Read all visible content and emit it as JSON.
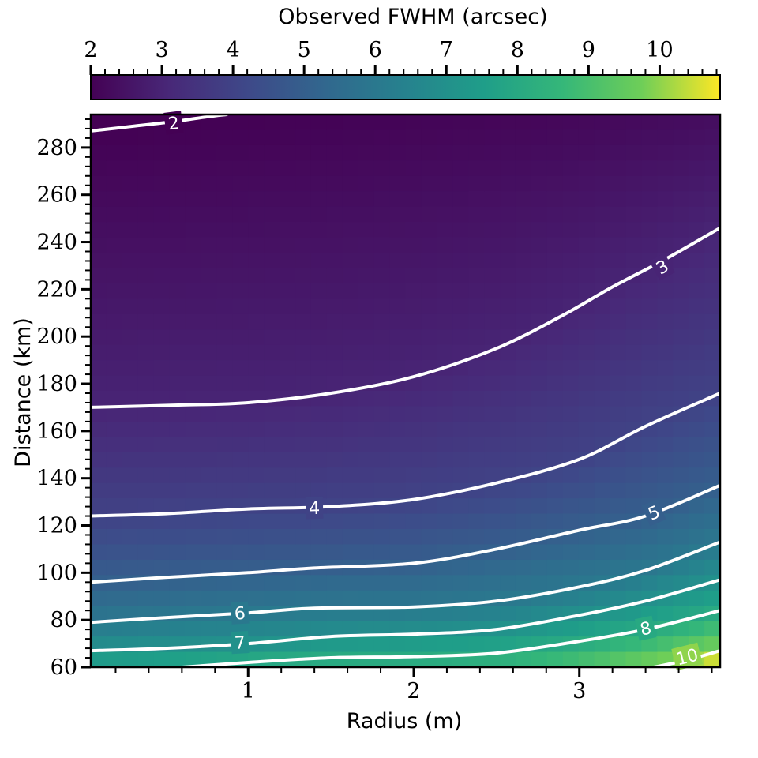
{
  "chart_data": {
    "type": "heatmap",
    "colormap": "viridis",
    "colorbar": {
      "label": "Observed FWHM (arcsec)",
      "range": [
        2,
        10.85
      ],
      "ticks": [
        2,
        3,
        4,
        5,
        6,
        7,
        8,
        9,
        10
      ],
      "tick_labels": [
        "2",
        "3",
        "4",
        "5",
        "6",
        "7",
        "8",
        "9",
        "10"
      ],
      "position": "top"
    },
    "x": {
      "label": "Radius (m)",
      "range": [
        0.05,
        3.85
      ],
      "ticks": [
        1,
        2,
        3
      ],
      "tick_labels": [
        "1",
        "2",
        "3"
      ]
    },
    "y": {
      "label": "Distance (km)",
      "range": [
        60,
        294
      ],
      "ticks": [
        60,
        80,
        100,
        120,
        140,
        160,
        180,
        200,
        220,
        240,
        260,
        280
      ],
      "tick_labels": [
        "60",
        "80",
        "100",
        "120",
        "140",
        "160",
        "180",
        "200",
        "220",
        "240",
        "260",
        "280"
      ]
    },
    "grid": false,
    "contours": [
      {
        "level": 2,
        "label": "2",
        "points": [
          [
            0.05,
            287
          ],
          [
            0.3,
            289
          ],
          [
            0.55,
            291
          ],
          [
            0.75,
            293
          ],
          [
            0.87,
            294
          ]
        ],
        "label_at": [
          0.55,
          290.5
        ]
      },
      {
        "level": 3,
        "label": "3",
        "points": [
          [
            0.05,
            170
          ],
          [
            0.6,
            171
          ],
          [
            1.0,
            172
          ],
          [
            1.5,
            176
          ],
          [
            2.0,
            183
          ],
          [
            2.5,
            195
          ],
          [
            2.9,
            209
          ],
          [
            3.2,
            221
          ],
          [
            3.5,
            232
          ],
          [
            3.85,
            246
          ]
        ],
        "label_at": [
          3.5,
          229.5
        ]
      },
      {
        "level": 4,
        "label": "4",
        "points": [
          [
            0.05,
            124
          ],
          [
            0.5,
            125
          ],
          [
            1.0,
            127
          ],
          [
            1.5,
            128
          ],
          [
            2.0,
            131
          ],
          [
            2.5,
            138
          ],
          [
            3.0,
            148
          ],
          [
            3.4,
            162
          ],
          [
            3.85,
            176
          ]
        ],
        "label_at": [
          1.4,
          127.5
        ]
      },
      {
        "level": 5,
        "label": "5",
        "points": [
          [
            0.05,
            96
          ],
          [
            0.5,
            98
          ],
          [
            1.0,
            100
          ],
          [
            1.4,
            102
          ],
          [
            2.0,
            104
          ],
          [
            2.5,
            110
          ],
          [
            3.0,
            118
          ],
          [
            3.4,
            124
          ],
          [
            3.85,
            137
          ]
        ],
        "label_at": [
          3.45,
          125.5
        ]
      },
      {
        "level": 6,
        "label": "6",
        "points": [
          [
            0.05,
            79
          ],
          [
            0.5,
            81
          ],
          [
            1.0,
            83
          ],
          [
            1.4,
            85
          ],
          [
            2.0,
            85.5
          ],
          [
            2.5,
            88
          ],
          [
            3.0,
            94
          ],
          [
            3.4,
            101
          ],
          [
            3.85,
            113
          ]
        ],
        "label_at": [
          0.95,
          83
        ]
      },
      {
        "level": 7,
        "label": "7",
        "points": [
          [
            0.05,
            67
          ],
          [
            0.5,
            68
          ],
          [
            1.0,
            70
          ],
          [
            1.5,
            73
          ],
          [
            2.0,
            74
          ],
          [
            2.5,
            76
          ],
          [
            3.0,
            82
          ],
          [
            3.4,
            88
          ],
          [
            3.85,
            97
          ]
        ],
        "label_at": [
          0.95,
          70.5
        ]
      },
      {
        "level": 8,
        "label": "8",
        "points": [
          [
            0.6,
            60
          ],
          [
            1.0,
            62
          ],
          [
            1.5,
            64
          ],
          [
            2.0,
            64.5
          ],
          [
            2.5,
            66
          ],
          [
            3.0,
            71
          ],
          [
            3.4,
            76
          ],
          [
            3.85,
            84
          ]
        ],
        "label_at": [
          3.4,
          76.5
        ]
      },
      {
        "level": 10,
        "label": "10",
        "points": [
          [
            3.45,
            60
          ],
          [
            3.65,
            63
          ],
          [
            3.85,
            67
          ]
        ],
        "label_at": [
          3.65,
          64.5
        ]
      }
    ]
  }
}
